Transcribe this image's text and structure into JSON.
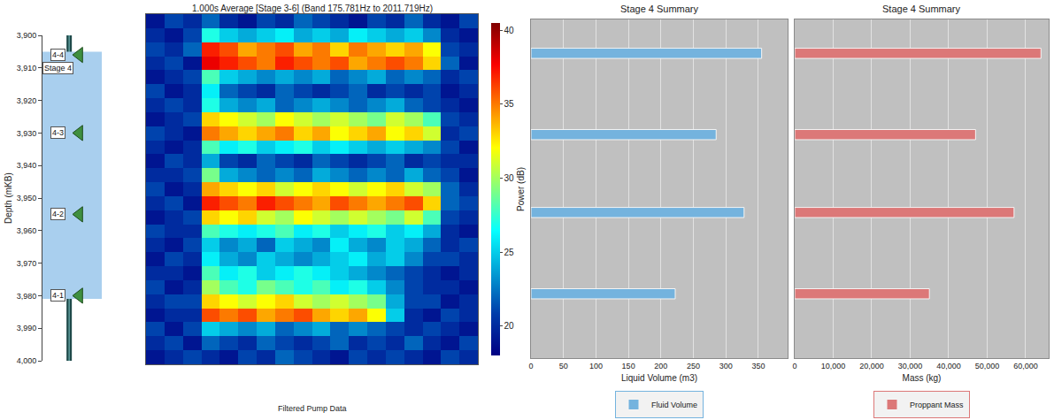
{
  "chart_data": [
    {
      "type": "well_diagram",
      "ylabel": "Depth (mKB)",
      "ylim": [
        4000,
        3900
      ],
      "yticks": [
        {
          "value": 3900,
          "label": "3,900"
        },
        {
          "value": 3910,
          "label": "3,910"
        },
        {
          "value": 3920,
          "label": "3,920"
        },
        {
          "value": 3930,
          "label": "3,930"
        },
        {
          "value": 3940,
          "label": "3,940"
        },
        {
          "value": 3950,
          "label": "3,950"
        },
        {
          "value": 3960,
          "label": "3,960"
        },
        {
          "value": 3970,
          "label": "3,970"
        },
        {
          "value": 3980,
          "label": "3,980"
        },
        {
          "value": 3990,
          "label": "3,990"
        },
        {
          "value": 4000,
          "label": "4,000"
        }
      ],
      "stage_label": "Stage 4",
      "stage_interval": [
        3905,
        3981
      ],
      "perforations": {
        "labels": [
          "4-4",
          "4-3",
          "4-2",
          "4-1"
        ],
        "depths": [
          3906,
          3930,
          3955,
          3980
        ]
      },
      "marker": "triangle-left",
      "color": "#3f8f3f",
      "tick_labels": "y"
    },
    {
      "type": "heatmap",
      "title": "1.000s Average [Stage 3-6] (Band 175.781Hz to 2011.719Hz)",
      "x": [
        0,
        1,
        2,
        3,
        4,
        5,
        6,
        7,
        8,
        9,
        10,
        11,
        12,
        13,
        14,
        15,
        16,
        17
      ],
      "xlim": [
        -0.5,
        17.5
      ],
      "y": [
        3902,
        3906,
        3910,
        3914,
        3918,
        3922,
        3926,
        3930,
        3934,
        3938,
        3942,
        3946,
        3950,
        3954,
        3958,
        3962,
        3966,
        3970,
        3974,
        3978,
        3982,
        3986,
        3990,
        3994,
        3998
      ],
      "ylim": [
        4000,
        3900
      ],
      "z": [
        [
          19,
          21,
          20,
          22,
          20,
          19,
          21,
          20,
          22,
          21,
          20,
          19,
          21,
          20,
          22,
          20,
          19,
          21
        ],
        [
          20,
          19,
          21,
          27,
          25,
          24,
          25,
          26,
          24,
          25,
          24,
          26,
          25,
          24,
          25,
          23,
          20,
          19
        ],
        [
          21,
          20,
          22,
          37,
          36,
          34,
          35,
          36,
          34,
          35,
          33,
          35,
          34,
          33,
          34,
          32,
          21,
          20
        ],
        [
          20,
          21,
          19,
          38,
          37,
          36,
          35,
          37,
          36,
          35,
          36,
          34,
          35,
          36,
          35,
          33,
          22,
          19
        ],
        [
          19,
          20,
          21,
          28,
          25,
          24,
          23,
          24,
          23,
          24,
          22,
          23,
          24,
          22,
          23,
          22,
          20,
          21
        ],
        [
          21,
          19,
          20,
          26,
          22,
          21,
          20,
          22,
          21,
          20,
          21,
          22,
          20,
          21,
          20,
          21,
          19,
          20
        ],
        [
          20,
          21,
          20,
          27,
          24,
          23,
          24,
          22,
          23,
          24,
          23,
          22,
          23,
          24,
          22,
          21,
          20,
          19
        ],
        [
          19,
          20,
          21,
          33,
          32,
          31,
          30,
          32,
          31,
          30,
          31,
          30,
          29,
          31,
          30,
          28,
          21,
          20
        ],
        [
          21,
          20,
          19,
          35,
          34,
          33,
          34,
          35,
          33,
          34,
          32,
          33,
          34,
          32,
          33,
          31,
          20,
          21
        ],
        [
          20,
          19,
          20,
          28,
          26,
          27,
          25,
          26,
          27,
          25,
          26,
          25,
          24,
          25,
          24,
          23,
          21,
          19
        ],
        [
          19,
          21,
          20,
          24,
          21,
          20,
          22,
          21,
          20,
          22,
          21,
          20,
          21,
          22,
          20,
          21,
          20,
          20
        ],
        [
          20,
          20,
          21,
          29,
          24,
          23,
          22,
          23,
          22,
          24,
          23,
          22,
          23,
          22,
          24,
          22,
          21,
          19
        ],
        [
          21,
          19,
          20,
          34,
          33,
          32,
          33,
          31,
          32,
          33,
          32,
          31,
          32,
          33,
          31,
          30,
          22,
          20
        ],
        [
          20,
          21,
          19,
          37,
          36,
          35,
          37,
          36,
          35,
          34,
          36,
          35,
          34,
          35,
          36,
          33,
          22,
          21
        ],
        [
          19,
          20,
          21,
          33,
          32,
          33,
          31,
          30,
          32,
          31,
          30,
          31,
          30,
          29,
          31,
          28,
          21,
          20
        ],
        [
          21,
          20,
          20,
          28,
          27,
          26,
          27,
          28,
          26,
          27,
          25,
          26,
          27,
          25,
          26,
          24,
          20,
          19
        ],
        [
          20,
          19,
          21,
          25,
          23,
          24,
          22,
          25,
          24,
          23,
          26,
          24,
          23,
          25,
          24,
          22,
          20,
          21
        ],
        [
          19,
          21,
          20,
          26,
          24,
          23,
          25,
          24,
          23,
          24,
          25,
          26,
          24,
          25,
          23,
          21,
          21,
          20
        ],
        [
          20,
          20,
          19,
          28,
          26,
          27,
          25,
          26,
          27,
          26,
          25,
          24,
          23,
          22,
          21,
          20,
          19,
          20
        ],
        [
          21,
          19,
          20,
          30,
          28,
          27,
          29,
          28,
          27,
          28,
          26,
          27,
          25,
          23,
          21,
          20,
          20,
          19
        ],
        [
          20,
          21,
          21,
          33,
          32,
          31,
          32,
          33,
          31,
          30,
          31,
          30,
          29,
          24,
          21,
          21,
          19,
          20
        ],
        [
          19,
          20,
          20,
          36,
          35,
          36,
          34,
          35,
          36,
          34,
          33,
          34,
          32,
          25,
          20,
          19,
          21,
          20
        ],
        [
          21,
          19,
          21,
          25,
          24,
          23,
          24,
          22,
          23,
          24,
          22,
          23,
          22,
          21,
          20,
          21,
          20,
          19
        ],
        [
          20,
          21,
          19,
          22,
          21,
          20,
          22,
          21,
          20,
          21,
          22,
          20,
          21,
          20,
          22,
          20,
          19,
          21
        ],
        [
          19,
          20,
          21,
          20,
          19,
          21,
          20,
          22,
          21,
          20,
          19,
          21,
          20,
          21,
          20,
          19,
          21,
          20
        ]
      ],
      "colorbar": {
        "title": "Power (dB)",
        "range": [
          18,
          40.5
        ],
        "ticks": [
          20,
          25,
          30,
          35,
          40
        ]
      },
      "tick_labels": false
    },
    {
      "type": "bar",
      "orientation": "horizontal",
      "title": "Stage 4 Summary",
      "xlabel": "Liquid Volume (m3)",
      "y": [
        3910,
        3934,
        3957,
        3981
      ],
      "ylim": [
        4000,
        3900
      ],
      "xlim": [
        0,
        395
      ],
      "xticks": [
        0,
        50,
        100,
        150,
        200,
        250,
        300,
        350
      ],
      "series": [
        {
          "name": "Fluid Volume",
          "color": "#74b3de",
          "values": [
            355,
            285,
            328,
            222
          ]
        }
      ],
      "grid": true,
      "legend": "bottom",
      "tick_labels": "x"
    },
    {
      "type": "bar",
      "orientation": "horizontal",
      "title": "Stage 4 Summary",
      "xlabel": "Mass (kg)",
      "y": [
        3910,
        3934,
        3957,
        3981
      ],
      "ylim": [
        4000,
        3900
      ],
      "xlim": [
        0,
        66000
      ],
      "xticks": [
        0,
        {
          "value": 10000,
          "label": "10,000"
        },
        {
          "value": 20000,
          "label": "20,000"
        },
        {
          "value": 30000,
          "label": "30,000"
        },
        {
          "value": 40000,
          "label": "40,000"
        },
        {
          "value": 50000,
          "label": "50,000"
        },
        {
          "value": 60000,
          "label": "60,000"
        }
      ],
      "series": [
        {
          "name": "Proppant Mass",
          "color": "#dc7878",
          "values": [
            64000,
            47000,
            57000,
            35000
          ]
        }
      ],
      "grid": true,
      "legend": "bottom",
      "tick_labels": "x"
    }
  ],
  "footer": {
    "title": "Filtered Pump Data"
  }
}
